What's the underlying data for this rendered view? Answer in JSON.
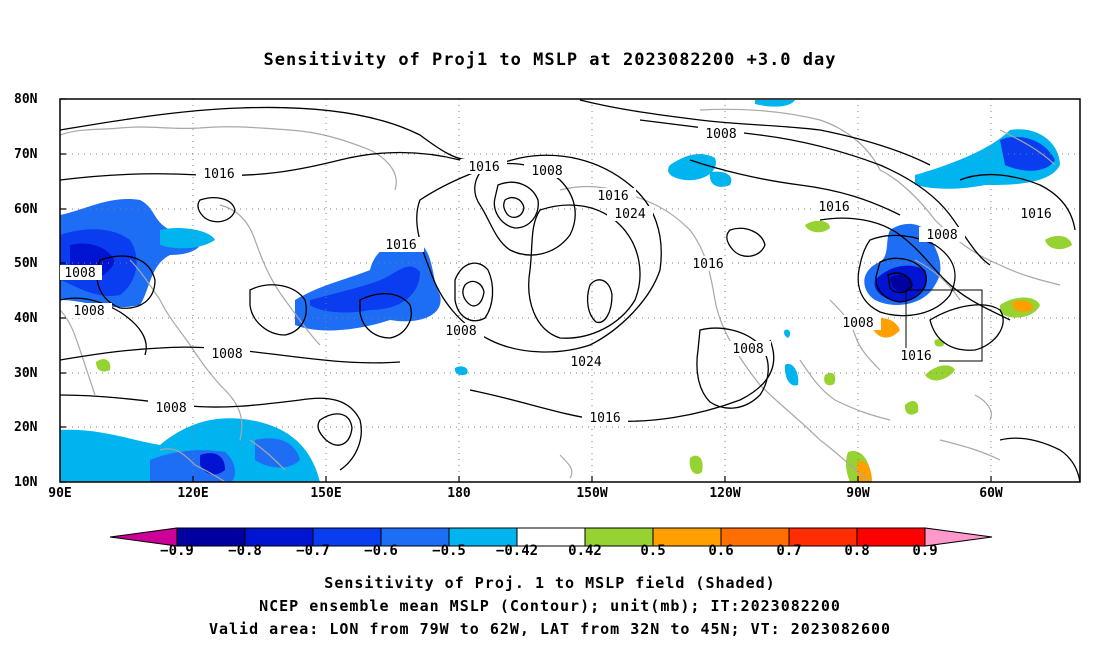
{
  "title": "Sensitivity of Proj1 to MSLP at 2023082200 +3.0 day",
  "lat_labels": [
    "80N",
    "70N",
    "60N",
    "50N",
    "40N",
    "30N",
    "20N",
    "10N"
  ],
  "lon_labels": [
    "90E",
    "120E",
    "150E",
    "180",
    "150W",
    "120W",
    "90W",
    "60W"
  ],
  "contour_labels": [
    "1016",
    "1008",
    "1016",
    "1008",
    "1008",
    "1016",
    "1024",
    "1016",
    "1016",
    "1008",
    "1008",
    "1008",
    "1008",
    "1024",
    "1016",
    "1008",
    "1016",
    "1008",
    "1008",
    "1016",
    "1016",
    "1008"
  ],
  "colorbar": {
    "labels": [
      "−0.9",
      "−0.8",
      "−0.7",
      "−0.6",
      "−0.5",
      "−0.42",
      "0.42",
      "0.5",
      "0.6",
      "0.7",
      "0.8",
      "0.9"
    ],
    "colors": [
      "#cc0099",
      "#0000a0",
      "#0014d2",
      "#0a3cf0",
      "#1e6ef5",
      "#00b4f0",
      "#ffffff",
      "#96d232",
      "#ffa000",
      "#ff6e00",
      "#ff2d00",
      "#ff0000",
      "#ff99cc"
    ]
  },
  "footer": {
    "line1": "Sensitivity of Proj. 1 to MSLP field (Shaded)",
    "line2": "NCEP ensemble mean MSLP (Contour); unit(mb); IT:2023082200",
    "line3": "Valid area: LON from 79W to 62W, LAT from 32N to 45N; VT: 2023082600"
  }
}
